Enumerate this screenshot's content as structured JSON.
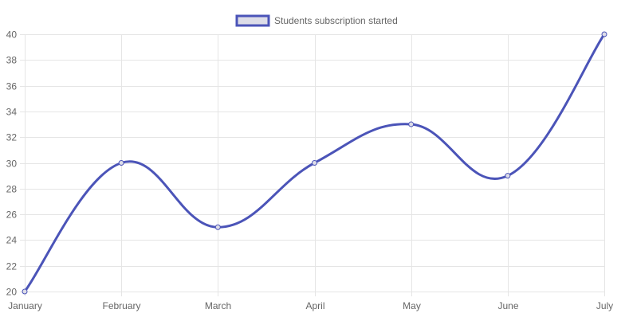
{
  "chart_data": {
    "type": "line",
    "categories": [
      "January",
      "February",
      "March",
      "April",
      "May",
      "June",
      "July"
    ],
    "series": [
      {
        "name": "Students subscription started",
        "values": [
          20,
          30,
          25,
          30,
          33,
          29,
          40
        ],
        "color": "#4b54b8",
        "fill_color": "#dddde8"
      }
    ],
    "ylim": [
      20,
      40
    ],
    "y_ticks": [
      20,
      22,
      24,
      26,
      28,
      30,
      32,
      34,
      36,
      38,
      40
    ],
    "grid": true,
    "legend": "top-center",
    "grid_color": "#e5e5e5",
    "label_color": "#666666"
  }
}
